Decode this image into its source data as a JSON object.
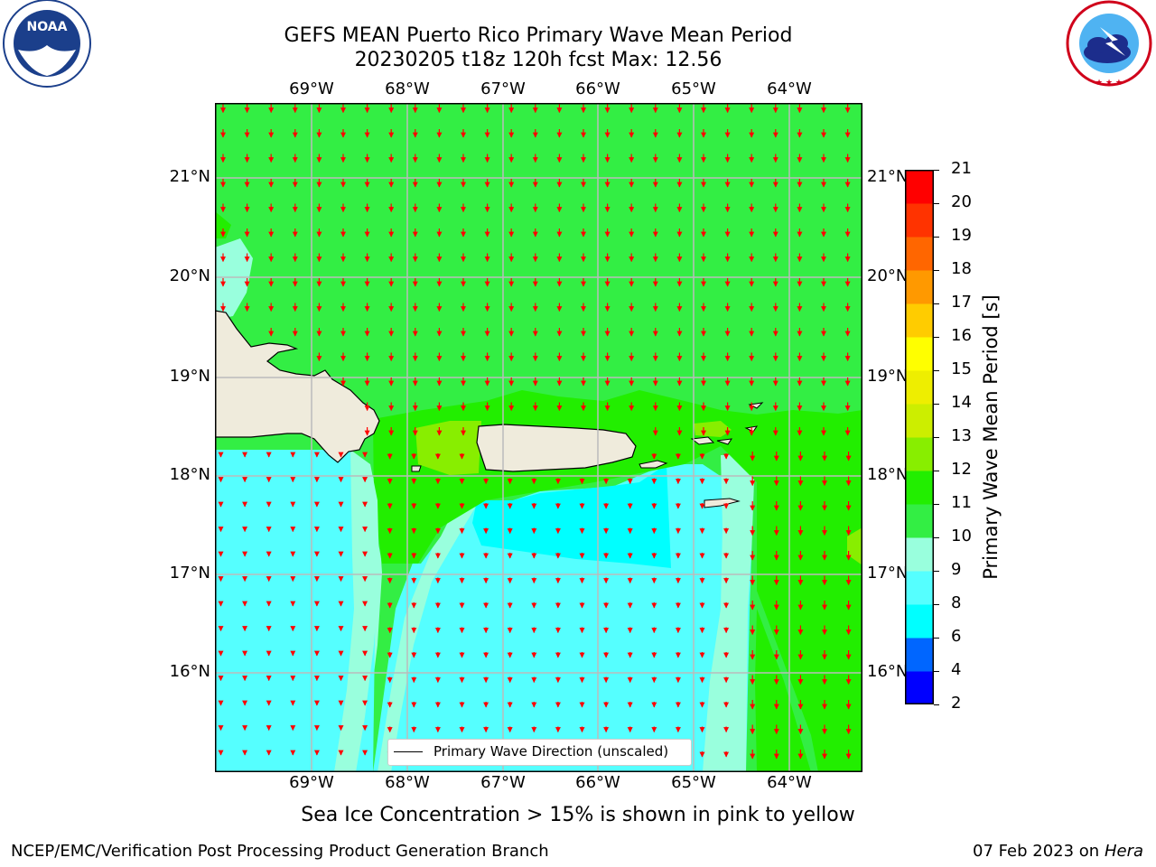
{
  "header": {
    "title_line1": "GEFS MEAN Puerto Rico Primary Wave Mean Period",
    "title_line2": "20230205 t18z 120h fcst   Max: 12.56"
  },
  "logos": {
    "left": {
      "name": "noaa-logo",
      "text": "NOAA",
      "ring_text": "NATIONAL OCEANIC AND ATMOSPHERIC ADMINISTRATION · U.S. DEPARTMENT OF COMMERCE"
    },
    "right": {
      "name": "nws-logo",
      "ring_text": "NATIONAL WEATHER SERVICE"
    }
  },
  "map": {
    "lon_labels": [
      "69°W",
      "68°W",
      "67°W",
      "66°W",
      "65°W",
      "64°W"
    ],
    "lat_labels": [
      "21°N",
      "20°N",
      "19°N",
      "18°N",
      "17°N",
      "16°N"
    ],
    "legend_label": "Primary Wave Direction (unscaled)",
    "arrow_color": "#ff0000",
    "land_color": "#efebdc",
    "coast_color": "#000000"
  },
  "colorbar": {
    "label": "Primary Wave Mean Period [s]",
    "ticks": [
      "2",
      "4",
      "6",
      "8",
      "9",
      "10",
      "11",
      "12",
      "13",
      "14",
      "15",
      "16",
      "17",
      "18",
      "19",
      "20",
      "21"
    ],
    "colors": [
      "#0000ff",
      "#0066ff",
      "#00ffff",
      "#55ffff",
      "#99ffdd",
      "#33ee44",
      "#22ee00",
      "#88ee00",
      "#ccee00",
      "#eeee00",
      "#ffff00",
      "#ffcc00",
      "#ff9900",
      "#ff6600",
      "#ff3300",
      "#ff0000"
    ]
  },
  "footer": {
    "sea_ice_note": "Sea Ice Concentration > 15% is shown in pink to yellow",
    "left_credit": "NCEP/EMC/Verification Post Processing Product Generation Branch",
    "right_date": "07 Feb 2023 on",
    "right_machine": "Hera"
  }
}
